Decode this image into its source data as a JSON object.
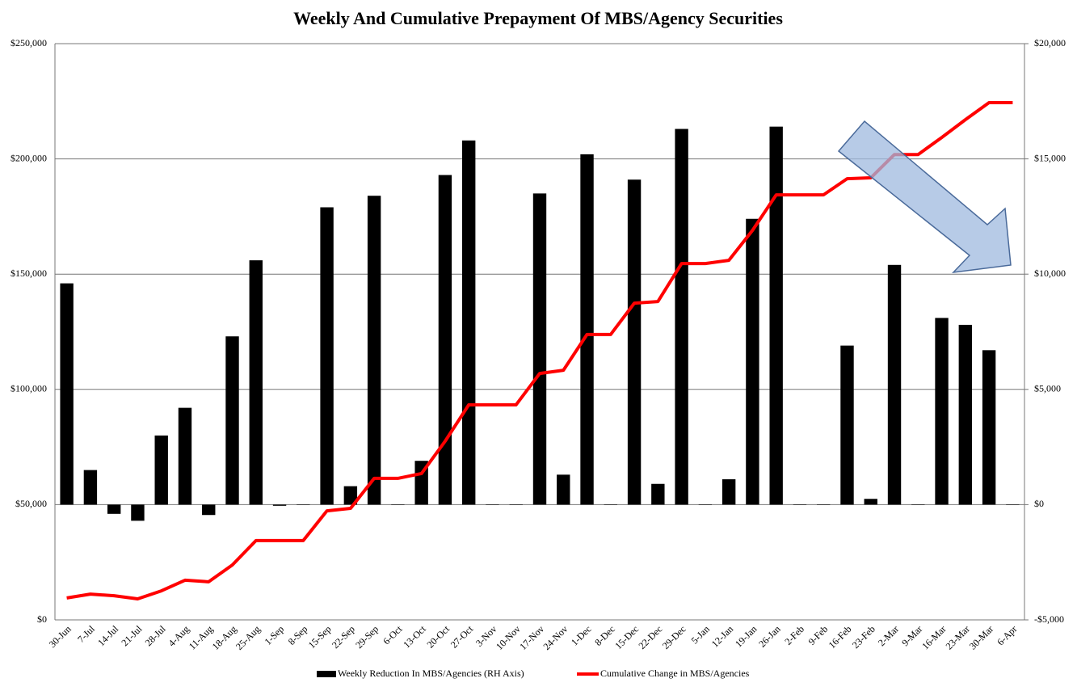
{
  "chart_data": {
    "type": "bar_line",
    "title": "Weekly And Cumulative Prepayment Of MBS/Agency Securities",
    "categories": [
      "30-Jun",
      "7-Jul",
      "14-Jul",
      "21-Jul",
      "28-Jul",
      "4-Aug",
      "11-Aug",
      "18-Aug",
      "25-Aug",
      "1-Sep",
      "8-Sep",
      "15-Sep",
      "22-Sep",
      "29-Sep",
      "6-Oct",
      "13-Oct",
      "20-Oct",
      "27-Oct",
      "3-Nov",
      "10-Nov",
      "17-Nov",
      "24-Nov",
      "1-Dec",
      "8-Dec",
      "15-Dec",
      "22-Dec",
      "29-Dec",
      "5-Jan",
      "12-Jan",
      "19-Jan",
      "26-Jan",
      "2-Feb",
      "9-Feb",
      "16-Feb",
      "23-Feb",
      "2-Mar",
      "9-Mar",
      "16-Mar",
      "23-Mar",
      "30-Mar",
      "6-Apr"
    ],
    "series": [
      {
        "name": "Weekly Reduction In MBS/Agencies (RH Axis)",
        "type": "bar",
        "axis": "y2",
        "color": "#000000",
        "values": [
          9600,
          1500,
          -400,
          -700,
          3000,
          4200,
          -450,
          7300,
          10600,
          -50,
          0,
          12900,
          800,
          13400,
          0,
          1900,
          14300,
          15800,
          0,
          0,
          13500,
          1300,
          15200,
          0,
          14100,
          900,
          16300,
          0,
          1100,
          12400,
          16400,
          0,
          0,
          6900,
          250,
          10400,
          0,
          8100,
          7800,
          6700,
          0
        ]
      },
      {
        "name": "Cumulative Change in MBS/Agencies",
        "type": "line",
        "color": "#ff0000",
        "values": [
          9500,
          11200,
          10500,
          9100,
          12600,
          17200,
          16500,
          23800,
          34400,
          34400,
          34400,
          47300,
          48400,
          61400,
          61400,
          63500,
          77500,
          93300,
          93300,
          93300,
          106900,
          108300,
          123800,
          123800,
          137400,
          138100,
          154600,
          154600,
          156000,
          169000,
          184400,
          184400,
          184400,
          191400,
          191800,
          201900,
          201900,
          209300,
          217000,
          224400,
          224400
        ]
      }
    ],
    "ylim": [
      0,
      250000
    ],
    "yticks": [
      {
        "value": 0,
        "label": "$0"
      },
      {
        "value": 50000,
        "label": "$50,000"
      },
      {
        "value": 100000,
        "label": "$100,000"
      },
      {
        "value": 150000,
        "label": "$150,000"
      },
      {
        "value": 200000,
        "label": "$200,000"
      },
      {
        "value": 250000,
        "label": "$250,000"
      }
    ],
    "y2lim": [
      -5000,
      20000
    ],
    "y2ticks": [
      {
        "value": -5000,
        "label": "-$5,000"
      },
      {
        "value": 0,
        "label": "$0"
      },
      {
        "value": 5000,
        "label": "$5,000"
      },
      {
        "value": 10000,
        "label": "$10,000"
      },
      {
        "value": 15000,
        "label": "$15,000"
      },
      {
        "value": 20000,
        "label": "$20,000"
      }
    ],
    "grid": true,
    "legend": "bottom"
  }
}
